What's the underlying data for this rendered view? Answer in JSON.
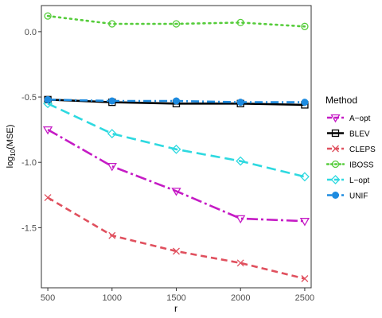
{
  "chart_data": {
    "type": "line",
    "xlabel": "r",
    "ylabel_base": "log",
    "ylabel_sub": "10",
    "ylabel_rest": "(MSE)",
    "x": [
      500,
      1000,
      1500,
      2000,
      2500
    ],
    "xlim": [
      450,
      2550
    ],
    "ylim": [
      -1.96,
      0.2
    ],
    "xticks": [
      500,
      1000,
      1500,
      2000,
      2500
    ],
    "yticks": [
      0.0,
      -0.5,
      -1.0,
      -1.5
    ],
    "ytick_labels": [
      "0.0",
      "-0.5",
      "-1.0",
      "-1.5"
    ],
    "grid": false,
    "legend_title": "Method",
    "legend_position": "right",
    "series": [
      {
        "name": "A−opt",
        "color": "#C51BC5",
        "dash": "14,4,3,4",
        "marker": "triangle-down",
        "values": [
          -0.75,
          -1.03,
          -1.22,
          -1.43,
          -1.45
        ]
      },
      {
        "name": "BLEV",
        "color": "#000000",
        "dash": "",
        "marker": "square",
        "values": [
          -0.52,
          -0.54,
          -0.55,
          -0.55,
          -0.56
        ]
      },
      {
        "name": "CLEPS",
        "color": "#E0505E",
        "dash": "8,5",
        "marker": "x",
        "values": [
          -1.27,
          -1.56,
          -1.68,
          -1.77,
          -1.89
        ]
      },
      {
        "name": "IBOSS",
        "color": "#55CC3A",
        "dash": "2,5",
        "marker": "circle-open",
        "values": [
          0.12,
          0.06,
          0.06,
          0.07,
          0.04
        ]
      },
      {
        "name": "L−opt",
        "color": "#2ED9E0",
        "dash": "12,6",
        "marker": "diamond",
        "values": [
          -0.55,
          -0.78,
          -0.9,
          -0.99,
          -1.11
        ]
      },
      {
        "name": "UNIF",
        "color": "#1D8BE0",
        "dash": "10,4,2,4",
        "marker": "circle-filled",
        "values": [
          -0.52,
          -0.53,
          -0.53,
          -0.54,
          -0.54
        ]
      }
    ]
  }
}
